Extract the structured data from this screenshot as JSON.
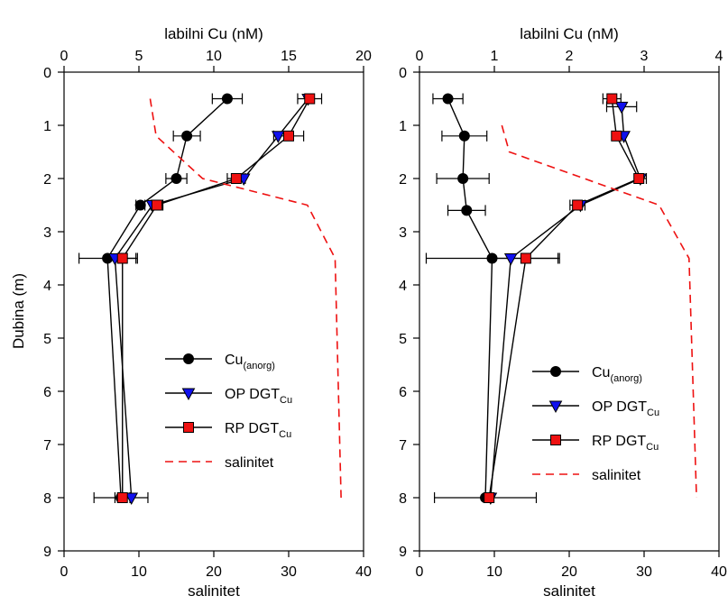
{
  "y_axis_label": "Dubina (m)",
  "chart_data": [
    {
      "type": "line",
      "top_axis": {
        "label": "labilni Cu (nM)",
        "range": [
          0,
          20
        ],
        "ticks": [
          "0",
          "5",
          "10",
          "15",
          "20"
        ]
      },
      "bottom_axis": {
        "label": "salinitet",
        "range": [
          0,
          40
        ],
        "ticks": [
          "0",
          "10",
          "20",
          "30",
          "40"
        ]
      },
      "y_axis": {
        "label": "Dubina (m)",
        "range": [
          0,
          9
        ],
        "reversed": true,
        "ticks": [
          "0",
          "1",
          "2",
          "3",
          "4",
          "5",
          "6",
          "7",
          "8",
          "9"
        ]
      },
      "legend": {
        "placement": "center-right"
      },
      "series": [
        {
          "name": "Cu",
          "name_sub": "(anorg)",
          "marker": "circle",
          "color": "#000000",
          "axis": "top",
          "points": [
            {
              "x": 10.9,
              "y": 0.5,
              "err": 1.0
            },
            {
              "x": 8.2,
              "y": 1.2,
              "err": 0.9
            },
            {
              "x": 7.5,
              "y": 2.0,
              "err": 0.7
            },
            {
              "x": 5.1,
              "y": 2.5,
              "err": 0.3
            },
            {
              "x": 2.9,
              "y": 3.5,
              "err": 1.9
            },
            {
              "x": 3.8,
              "y": 8.0,
              "err": 1.8
            }
          ]
        },
        {
          "name": "OP DGT",
          "name_sub": "Cu",
          "marker": "triangle",
          "color": "#1010ee",
          "axis": "top",
          "points": [
            {
              "x": 16.3,
              "y": 0.5
            },
            {
              "x": 14.3,
              "y": 1.2
            },
            {
              "x": 12.0,
              "y": 2.0
            },
            {
              "x": 5.9,
              "y": 2.5
            },
            {
              "x": 3.4,
              "y": 3.5
            },
            {
              "x": 4.5,
              "y": 8.0
            }
          ]
        },
        {
          "name": "RP DGT",
          "name_sub": "Cu",
          "marker": "square",
          "color": "#ee1111",
          "axis": "top",
          "points": [
            {
              "x": 16.4,
              "y": 0.5,
              "err": 0.8
            },
            {
              "x": 15.0,
              "y": 1.2,
              "err": 1.0
            },
            {
              "x": 11.5,
              "y": 2.0,
              "err": 0.6
            },
            {
              "x": 6.2,
              "y": 2.5,
              "err": 0.4
            },
            {
              "x": 3.9,
              "y": 3.5,
              "err": 1.0
            },
            {
              "x": 3.9,
              "y": 8.0,
              "err": 0.5
            }
          ]
        },
        {
          "name": "salinitet",
          "marker": "none",
          "dashed": true,
          "color": "#ee1111",
          "axis": "bottom",
          "points": [
            {
              "x": 11.5,
              "y": 0.5
            },
            {
              "x": 12.3,
              "y": 1.2
            },
            {
              "x": 18.5,
              "y": 2.0
            },
            {
              "x": 32.5,
              "y": 2.5
            },
            {
              "x": 36.2,
              "y": 3.5
            },
            {
              "x": 37.0,
              "y": 8.0
            }
          ]
        }
      ]
    },
    {
      "type": "line",
      "top_axis": {
        "label": "labilni Cu (nM)",
        "range": [
          0,
          4
        ],
        "ticks": [
          "0",
          "1",
          "2",
          "3",
          "4"
        ]
      },
      "bottom_axis": {
        "label": "salinitet",
        "range": [
          0,
          40
        ],
        "ticks": [
          "0",
          "10",
          "20",
          "30",
          "40"
        ]
      },
      "y_axis": {
        "label": "",
        "range": [
          0,
          9
        ],
        "reversed": true,
        "ticks": [
          "0",
          "1",
          "2",
          "3",
          "4",
          "5",
          "6",
          "7",
          "8",
          "9"
        ]
      },
      "legend": {
        "placement": "center-right"
      },
      "series": [
        {
          "name": "Cu",
          "name_sub": "(anorg)",
          "marker": "circle",
          "color": "#000000",
          "axis": "top",
          "points": [
            {
              "x": 0.38,
              "y": 0.5,
              "err": 0.2
            },
            {
              "x": 0.6,
              "y": 1.2,
              "err": 0.3
            },
            {
              "x": 0.58,
              "y": 2.0,
              "err": 0.35
            },
            {
              "x": 0.63,
              "y": 2.6,
              "err": 0.25
            },
            {
              "x": 0.97,
              "y": 3.5,
              "err": 0.88
            },
            {
              "x": 0.88,
              "y": 8.0,
              "err": 0.68
            }
          ]
        },
        {
          "name": "OP DGT",
          "name_sub": "Cu",
          "marker": "triangle",
          "color": "#1010ee",
          "axis": "top",
          "points": [
            {
              "x": 2.7,
              "y": 0.65,
              "err": 0.2
            },
            {
              "x": 2.73,
              "y": 1.2
            },
            {
              "x": 2.95,
              "y": 2.0,
              "err": 0.08
            },
            {
              "x": 2.15,
              "y": 2.5
            },
            {
              "x": 1.22,
              "y": 3.5
            },
            {
              "x": 0.95,
              "y": 8.0
            }
          ]
        },
        {
          "name": "RP DGT",
          "name_sub": "Cu",
          "marker": "square",
          "color": "#ee1111",
          "axis": "top",
          "points": [
            {
              "x": 2.57,
              "y": 0.5,
              "err": 0.12
            },
            {
              "x": 2.63,
              "y": 1.2
            },
            {
              "x": 2.93,
              "y": 2.0
            },
            {
              "x": 2.11,
              "y": 2.5,
              "err": 0.1
            },
            {
              "x": 1.42,
              "y": 3.5,
              "err": 0.45
            },
            {
              "x": 0.93,
              "y": 8.0
            }
          ]
        },
        {
          "name": "salinitet",
          "marker": "none",
          "dashed": true,
          "color": "#ee1111",
          "axis": "bottom",
          "points": [
            {
              "x": 11.0,
              "y": 1.0
            },
            {
              "x": 12.0,
              "y": 1.5
            },
            {
              "x": 22.0,
              "y": 2.0
            },
            {
              "x": 32.0,
              "y": 2.5
            },
            {
              "x": 36.0,
              "y": 3.5
            },
            {
              "x": 37.0,
              "y": 8.0
            }
          ]
        }
      ]
    }
  ]
}
